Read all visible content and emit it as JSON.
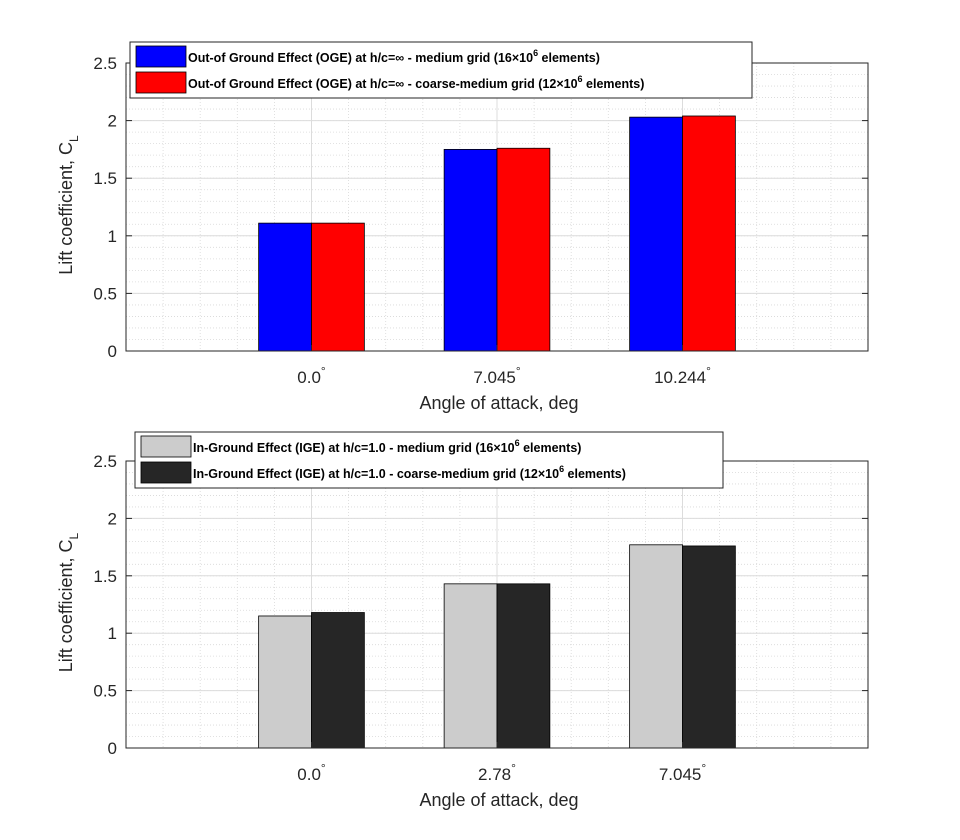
{
  "chart_data": [
    {
      "type": "bar",
      "title": "",
      "xlabel": "Angle of attack, deg",
      "ylabel": "Lift coefficient, C",
      "ylabel_subscript": "L",
      "ylim": [
        0,
        2.5
      ],
      "yticks": [
        0,
        0.5,
        1,
        1.5,
        2,
        2.5
      ],
      "ytick_labels": [
        "0",
        "0.5",
        "1",
        "1.5",
        "2",
        "2.5"
      ],
      "grid": true,
      "minor_grid": true,
      "legend_position": "top-left",
      "categories": [
        "0.0",
        "7.045",
        "10.244"
      ],
      "category_degree_symbol": "°",
      "series": [
        {
          "name": "Out-of Ground Effect (OGE) at h/c=∞ - medium grid (16×10",
          "name_superscript": "6",
          "name_suffix": " elements)",
          "color": "#0000ff",
          "values": [
            1.11,
            1.75,
            2.03
          ]
        },
        {
          "name": "Out-of Ground Effect (OGE) at h/c=∞ - coarse-medium grid (12×10",
          "name_superscript": "6",
          "name_suffix": " elements)",
          "color": "#ff0000",
          "values": [
            1.11,
            1.76,
            2.04
          ]
        }
      ]
    },
    {
      "type": "bar",
      "title": "",
      "xlabel": "Angle of attack, deg",
      "ylabel": "Lift coefficient, C",
      "ylabel_subscript": "L",
      "ylim": [
        0,
        2.5
      ],
      "yticks": [
        0,
        0.5,
        1,
        1.5,
        2,
        2.5
      ],
      "ytick_labels": [
        "0",
        "0.5",
        "1",
        "1.5",
        "2",
        "2.5"
      ],
      "grid": true,
      "minor_grid": true,
      "legend_position": "top-left",
      "categories": [
        "0.0",
        "2.78",
        "7.045"
      ],
      "category_degree_symbol": "°",
      "series": [
        {
          "name": "In-Ground Effect (IGE) at h/c=1.0 - medium grid (16×10",
          "name_superscript": "6",
          "name_suffix": " elements)",
          "color": "#cccccc",
          "values": [
            1.15,
            1.43,
            1.77
          ]
        },
        {
          "name": "In-Ground Effect (IGE) at h/c=1.0 - coarse-medium grid (12×10",
          "name_superscript": "6",
          "name_suffix": " elements)",
          "color": "#262626",
          "values": [
            1.18,
            1.43,
            1.76
          ]
        }
      ]
    }
  ]
}
